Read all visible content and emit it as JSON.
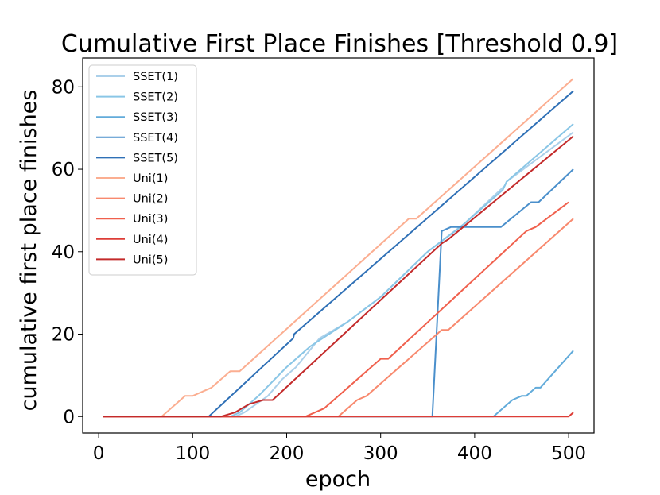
{
  "chart_data": {
    "type": "line",
    "title": "Cumulative First Place Finishes [Threshold 0.9]",
    "xlabel": "epoch",
    "ylabel": "cumulative first place finishes",
    "xlim": [
      -17,
      527
    ],
    "ylim": [
      -4,
      87
    ],
    "xticks": [
      0,
      100,
      200,
      300,
      400,
      500
    ],
    "yticks": [
      0,
      20,
      40,
      60,
      80
    ],
    "grid": false,
    "legend_position": "top-left",
    "series": [
      {
        "name": "SSET(1)",
        "color": "#abd0ea",
        "x": [
          5,
          145,
          155,
          180,
          195,
          210,
          235,
          265,
          300,
          350,
          390,
          432,
          434,
          505
        ],
        "y": [
          0,
          0,
          1,
          5,
          9,
          12,
          19,
          23,
          29,
          40,
          47,
          56,
          57,
          69
        ]
      },
      {
        "name": "SSET(2)",
        "color": "#8ac6e6",
        "x": [
          5,
          140,
          150,
          170,
          200,
          225,
          265,
          300,
          350,
          385,
          430,
          434,
          505
        ],
        "y": [
          0,
          0,
          1,
          5,
          12,
          17,
          23,
          29,
          40,
          46,
          55,
          57,
          71
        ]
      },
      {
        "name": "SSET(3)",
        "color": "#62abda",
        "x": [
          5,
          420,
          440,
          450,
          455,
          465,
          470,
          505
        ],
        "y": [
          0,
          0,
          4,
          5,
          5,
          7,
          7,
          16
        ]
      },
      {
        "name": "SSET(4)",
        "color": "#4a8fcb",
        "x": [
          5,
          280,
          355,
          365,
          375,
          428,
          460,
          468,
          505
        ],
        "y": [
          0,
          0,
          0,
          45,
          46,
          46,
          52,
          52,
          60
        ]
      },
      {
        "name": "SSET(5)",
        "color": "#2f70b6",
        "x": [
          5,
          117,
          207,
          208,
          505
        ],
        "y": [
          0,
          0,
          19,
          20,
          79
        ]
      },
      {
        "name": "Uni(1)",
        "color": "#fbae91",
        "x": [
          5,
          67,
          92,
          100,
          120,
          140,
          150,
          330,
          338,
          505
        ],
        "y": [
          0,
          0,
          5,
          5,
          7,
          11,
          11,
          48,
          48,
          82
        ]
      },
      {
        "name": "Uni(2)",
        "color": "#f8896e",
        "x": [
          5,
          255,
          275,
          285,
          365,
          372,
          505
        ],
        "y": [
          0,
          0,
          4,
          5,
          21,
          21,
          48
        ]
      },
      {
        "name": "Uni(3)",
        "color": "#f0604d",
        "x": [
          5,
          220,
          240,
          300,
          308,
          455,
          465,
          500
        ],
        "y": [
          0,
          0,
          2,
          14,
          14,
          45,
          46,
          52
        ]
      },
      {
        "name": "Uni(4)",
        "color": "#dd3d37",
        "x": [
          5,
          500,
          505
        ],
        "y": [
          0,
          0,
          1
        ]
      },
      {
        "name": "Uni(5)",
        "color": "#c32a2a",
        "x": [
          5,
          130,
          145,
          160,
          175,
          185,
          365,
          372,
          505
        ],
        "y": [
          0,
          0,
          1,
          3,
          4,
          4,
          42,
          43,
          68
        ]
      }
    ]
  }
}
